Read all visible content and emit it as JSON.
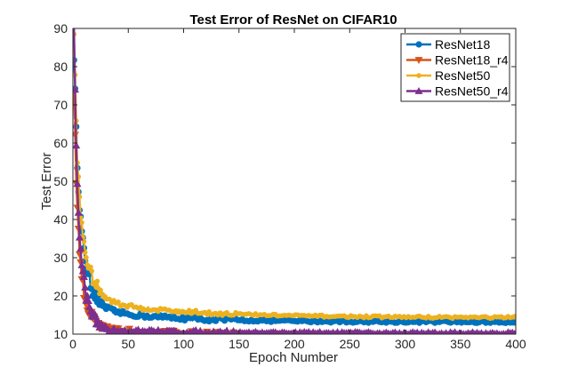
{
  "chart_data": {
    "type": "line",
    "title": "Test Error of ResNet on CIFAR10",
    "xlabel": "Epoch Number",
    "ylabel": "Test Error",
    "xlim": [
      0,
      400
    ],
    "ylim": [
      10,
      90
    ],
    "xticks": [
      0,
      50,
      100,
      150,
      200,
      250,
      300,
      350,
      400
    ],
    "yticks": [
      10,
      20,
      30,
      40,
      50,
      60,
      70,
      80,
      90
    ],
    "grid": false,
    "legend_position": "top-right",
    "series": [
      {
        "name": "ResNet18",
        "color": "#0072BD",
        "marker": "circle",
        "curve": {
          "start": 83,
          "floor": 13.2,
          "fast_amp": 44,
          "fast_tau": 8,
          "slow_tau": 70,
          "slow_level": 1.3
        }
      },
      {
        "name": "ResNet18_r4",
        "color": "#D95319",
        "marker": "triangle-down",
        "curve": {
          "start": 74,
          "floor": 9.6,
          "fast_amp": 38,
          "fast_tau": 6,
          "slow_tau": 80,
          "slow_level": 0.8
        }
      },
      {
        "name": "ResNet50",
        "color": "#EDB120",
        "marker": "circle-small",
        "curve": {
          "start": 89,
          "floor": 14.3,
          "fast_amp": 34,
          "fast_tau": 10,
          "slow_tau": 90,
          "slow_level": 1.6
        }
      },
      {
        "name": "ResNet50_r4",
        "color": "#7E2F8E",
        "marker": "triangle-up",
        "curve": {
          "start": 90,
          "floor": 10.2,
          "fast_amp": 42,
          "fast_tau": 7,
          "slow_tau": 100,
          "slow_level": 0.3
        }
      }
    ]
  }
}
